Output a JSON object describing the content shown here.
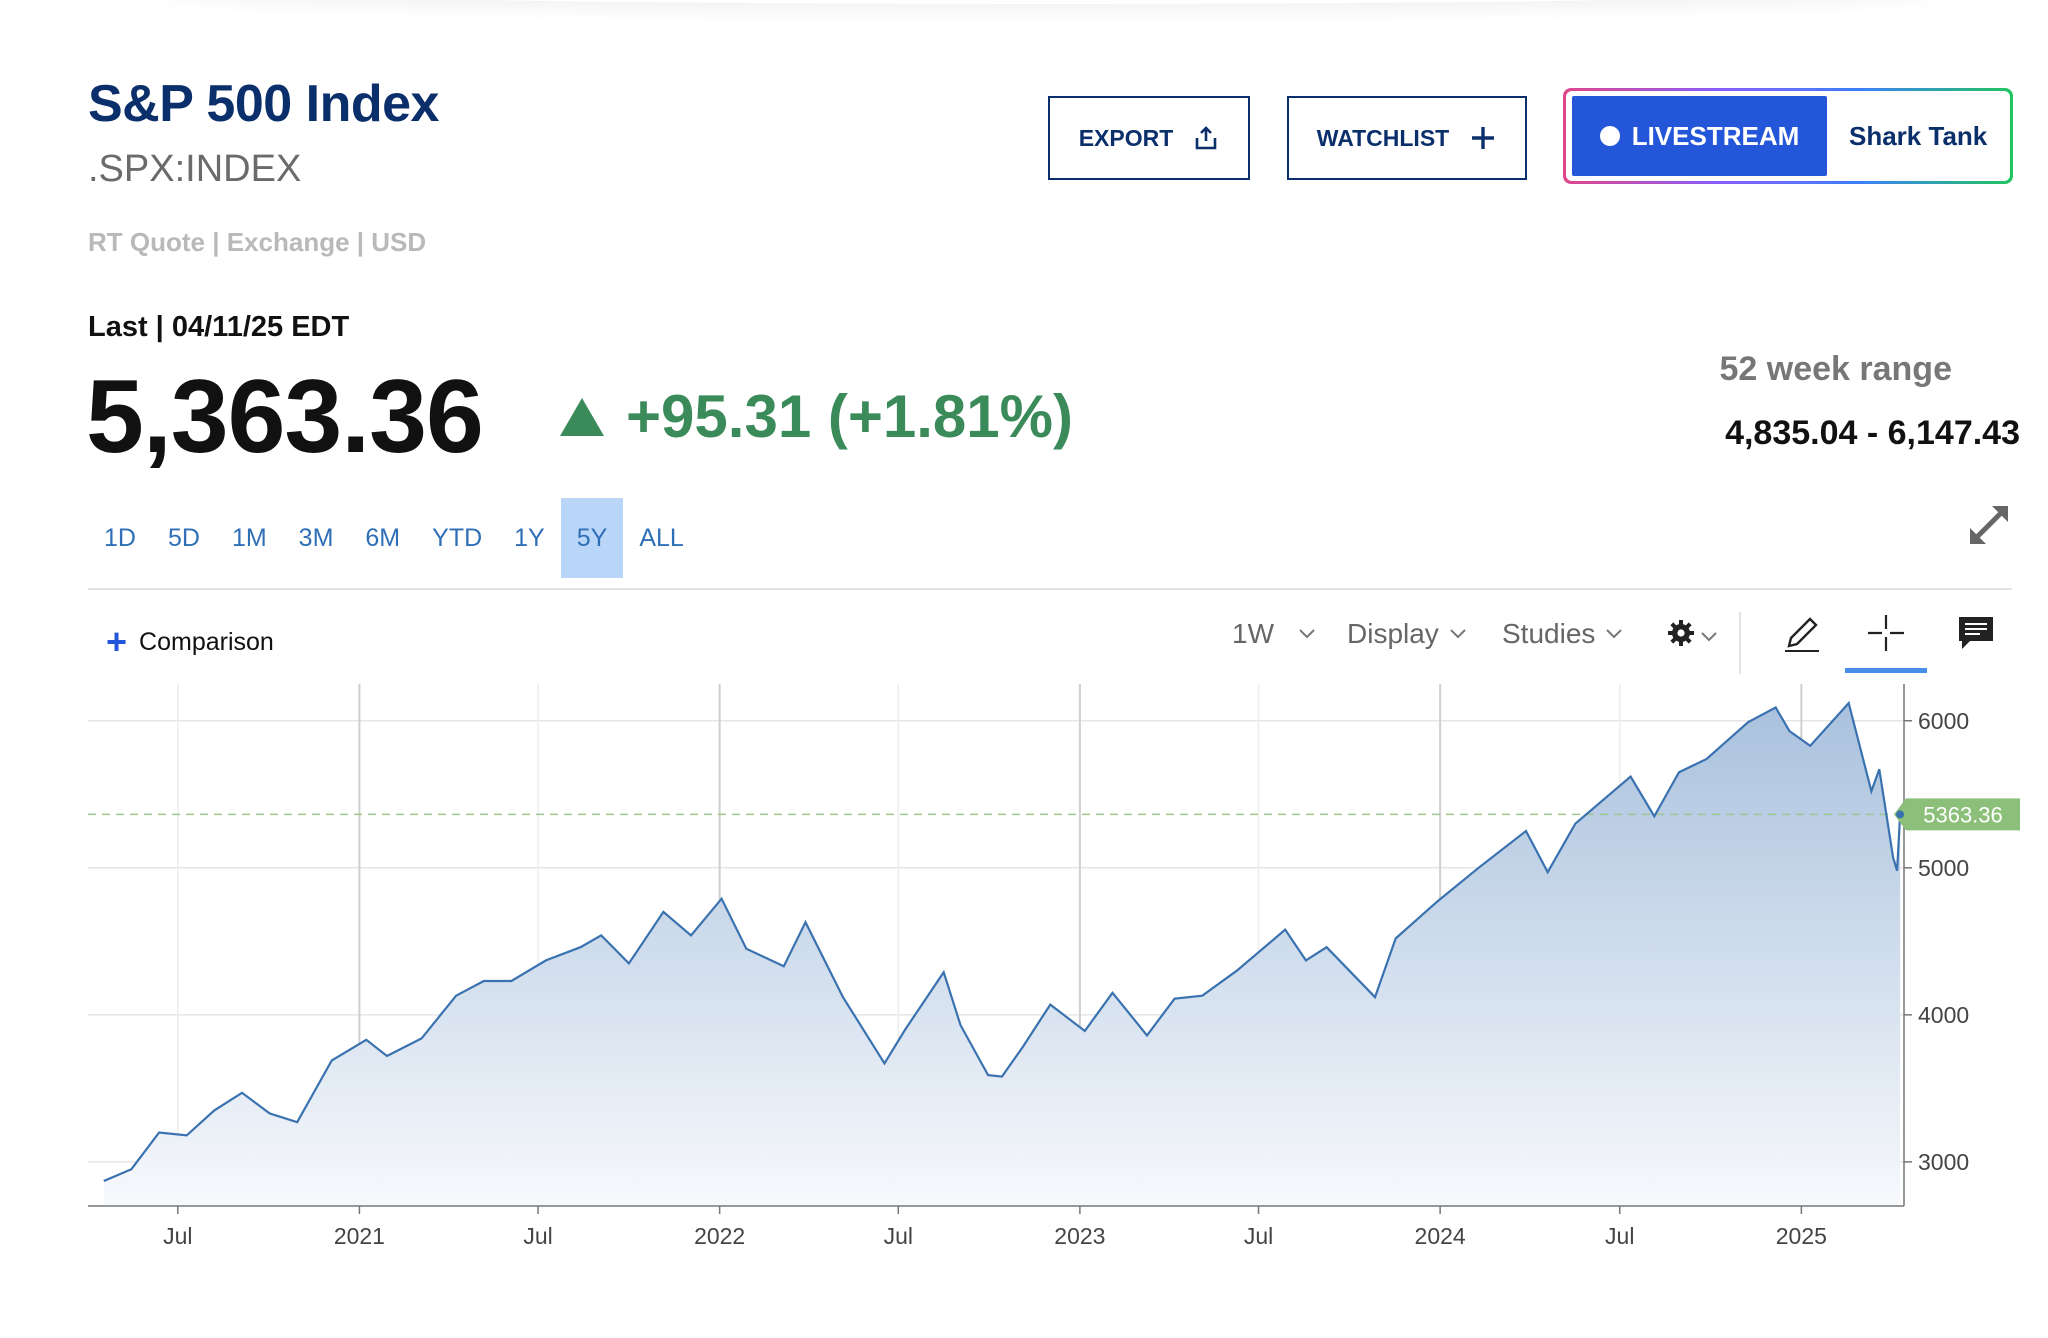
{
  "header": {
    "title": "S&P 500 Index",
    "symbol": ".SPX:INDEX",
    "quote_meta": "RT Quote | Exchange | USD",
    "last_label": "Last | 04/11/25 EDT",
    "price": "5,363.36",
    "change": "+95.31 (+1.81%)",
    "range_label": "52 week range",
    "range_value": "4,835.04 - 6,147.43"
  },
  "actions": {
    "export_label": "EXPORT",
    "watchlist_label": "WATCHLIST",
    "livestream_label": "LIVESTREAM",
    "livestream_show": "Shark Tank"
  },
  "periods": [
    "1D",
    "5D",
    "1M",
    "3M",
    "6M",
    "YTD",
    "1Y",
    "5Y",
    "ALL"
  ],
  "active_period": "5Y",
  "toolbar": {
    "comparison_label": "Comparison",
    "interval_label": "1W",
    "display_label": "Display",
    "studies_label": "Studies"
  },
  "colors": {
    "brand": "#0b2f6b",
    "positive": "#3a8a5a",
    "accent": "#2356d8",
    "line": "#3a72b0",
    "last_price_tag": "#8cc07a"
  },
  "chart_data": {
    "type": "area",
    "series": [
      {
        "x": [
          "2020-04-17",
          "2020-05-15",
          "2020-06-12",
          "2020-07-10",
          "2020-08-07",
          "2020-09-04",
          "2020-10-02",
          "2020-10-30",
          "2020-12-04",
          "2021-01-08",
          "2021-01-29",
          "2021-03-05",
          "2021-04-09",
          "2021-05-07",
          "2021-06-04",
          "2021-07-09",
          "2021-08-13",
          "2021-09-03",
          "2021-10-01",
          "2021-11-05",
          "2021-12-03",
          "2022-01-03",
          "2022-01-28",
          "2022-03-07",
          "2022-03-29",
          "2022-05-06",
          "2022-06-17",
          "2022-07-08",
          "2022-08-16",
          "2022-09-02",
          "2022-09-30",
          "2022-10-14",
          "2022-11-04",
          "2022-12-02",
          "2023-01-06",
          "2023-02-03",
          "2023-03-10",
          "2023-04-07",
          "2023-05-05",
          "2023-06-09",
          "2023-07-28",
          "2023-08-18",
          "2023-09-08",
          "2023-10-27",
          "2023-11-17",
          "2023-12-29",
          "2024-02-09",
          "2024-03-28",
          "2024-04-19",
          "2024-05-17",
          "2024-07-12",
          "2024-08-05",
          "2024-08-30",
          "2024-09-27",
          "2024-11-08",
          "2024-12-06",
          "2024-12-20",
          "2025-01-10",
          "2025-02-18",
          "2025-03-13",
          "2025-03-21",
          "2025-04-04",
          "2025-04-08",
          "2025-04-11"
        ],
        "values": [
          2870,
          2950,
          3200,
          3180,
          3350,
          3470,
          3330,
          3270,
          3690,
          3830,
          3720,
          3840,
          4130,
          4230,
          4230,
          4370,
          4460,
          4540,
          4350,
          4700,
          4540,
          4790,
          4450,
          4330,
          4630,
          4120,
          3670,
          3900,
          4290,
          3930,
          3590,
          3580,
          3780,
          4070,
          3890,
          4150,
          3860,
          4110,
          4130,
          4300,
          4580,
          4370,
          4460,
          4120,
          4520,
          4770,
          5000,
          5250,
          4970,
          5300,
          5620,
          5350,
          5650,
          5740,
          5990,
          6090,
          5930,
          5830,
          6120,
          5520,
          5670,
          5070,
          4980,
          5363
        ]
      }
    ],
    "x_ticks": [
      "Jul",
      "2021",
      "Jul",
      "2022",
      "Jul",
      "2023",
      "Jul",
      "2024",
      "Jul",
      "2025"
    ],
    "y_ticks": [
      3000,
      4000,
      5000,
      6000
    ],
    "ylim": [
      2700,
      6250
    ],
    "last_price_label": "5363.36",
    "last_price": 5363.36,
    "grid": true,
    "y_axis_position": "right"
  }
}
